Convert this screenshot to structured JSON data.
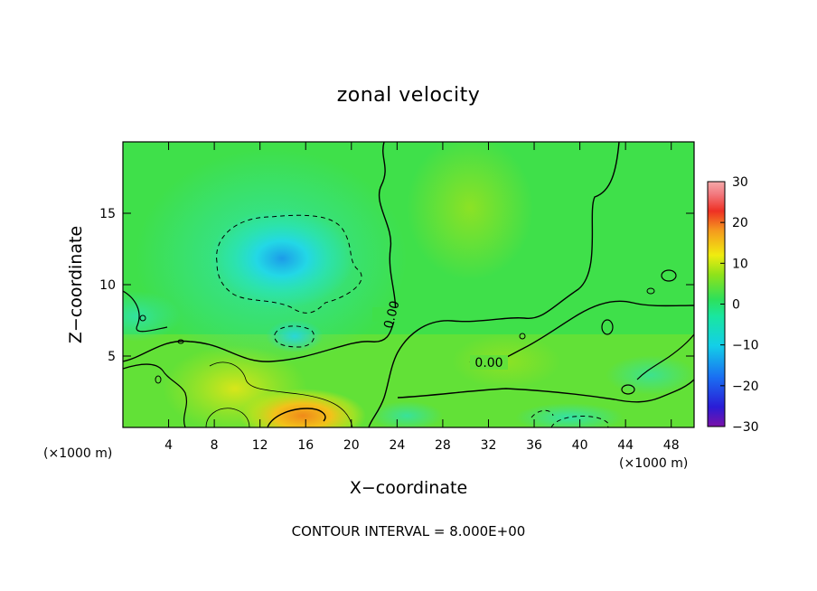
{
  "chart_data": {
    "type": "heatmap",
    "title": "zonal velocity",
    "xlabel": "X−coordinate",
    "ylabel": "Z−coordinate",
    "x_unit_left": "(×1000 m)",
    "x_unit_right": "(×1000 m)",
    "xlim": [
      0,
      50
    ],
    "ylim": [
      0,
      20
    ],
    "x_ticks": [
      4,
      8,
      12,
      16,
      20,
      24,
      28,
      32,
      36,
      40,
      44,
      48
    ],
    "y_ticks": [
      5,
      10,
      15
    ],
    "colorbar": {
      "range": [
        -30,
        30
      ],
      "ticks": [
        30,
        20,
        10,
        0,
        -10,
        -20,
        -30
      ],
      "tick_labels": [
        "30",
        "20",
        "10",
        "0",
        "−10",
        "−20",
        "−30"
      ]
    },
    "contour_labels": [
      {
        "text": "0.00",
        "x": 23,
        "y": 8
      },
      {
        "text": "0.00",
        "x": 32,
        "y": 4.5
      }
    ],
    "features": [
      {
        "name": "negative core",
        "x": 14,
        "y": 12,
        "value": -12
      },
      {
        "name": "positive jet",
        "x": 15,
        "y": 1,
        "value": 18
      }
    ],
    "footer": "CONTOUR INTERVAL = 8.000E+00"
  }
}
